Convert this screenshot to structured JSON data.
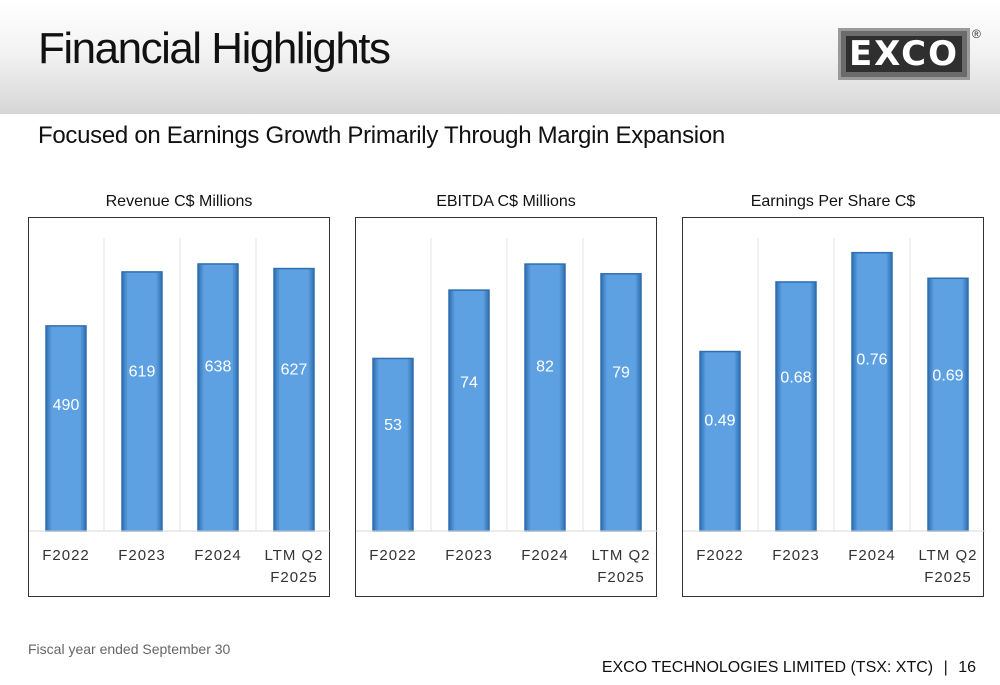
{
  "header": {
    "title": "Financial Highlights",
    "logo_text": "EXCO",
    "logo_mark": "®"
  },
  "subtitle": "Focused on Earnings Growth Primarily Through Margin Expansion",
  "footnote": "Fiscal year ended September 30",
  "footer": {
    "company": "EXCO TECHNOLOGIES LIMITED (TSX: XTC)",
    "separator": "|",
    "page": "16"
  },
  "colors": {
    "bar_fill": "#5ea1e3",
    "bar_edge": "#2f6fb0",
    "grid": "#e3e3e3",
    "label": "#ffffff"
  },
  "chart_data": [
    {
      "type": "bar",
      "title": "Revenue C$ Millions",
      "categories": [
        "F2022",
        "F2023",
        "F2024",
        "LTM Q2 F2025"
      ],
      "values": [
        490,
        619,
        638,
        627
      ],
      "value_labels": [
        "490",
        "619",
        "638",
        "627"
      ],
      "ylim": [
        0,
        700
      ]
    },
    {
      "type": "bar",
      "title": "EBITDA C$ Millions",
      "categories": [
        "F2022",
        "F2023",
        "F2024",
        "LTM Q2 F2025"
      ],
      "values": [
        53,
        74,
        82,
        79
      ],
      "value_labels": [
        "53",
        "74",
        "82",
        "79"
      ],
      "ylim": [
        0,
        90
      ]
    },
    {
      "type": "bar",
      "title": "Earnings Per Share C$",
      "categories": [
        "F2022",
        "F2023",
        "F2024",
        "LTM Q2 F2025"
      ],
      "values": [
        0.49,
        0.68,
        0.76,
        0.69
      ],
      "value_labels": [
        "0.49",
        "0.68",
        "0.76",
        "0.69"
      ],
      "ylim": [
        0,
        0.8
      ]
    }
  ]
}
